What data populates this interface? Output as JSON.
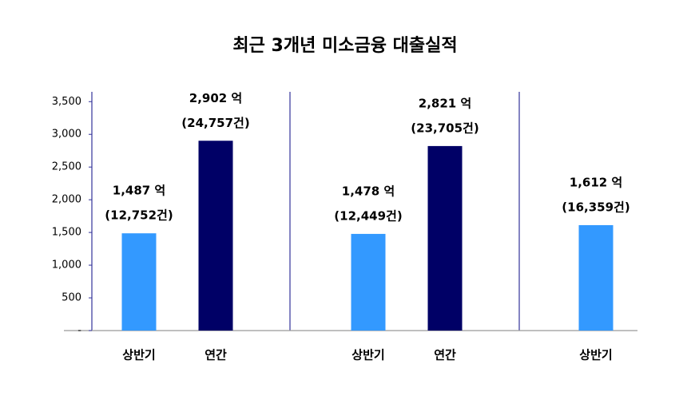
{
  "chart_data": {
    "type": "bar",
    "title": "최근 3개년 미소금융 대출실적",
    "categories": [
      "상반기",
      "연간",
      "상반기",
      "연간",
      "상반기"
    ],
    "values": [
      1487,
      2902,
      1478,
      2821,
      1612
    ],
    "value_labels": [
      "1,487 억",
      "2,902 억",
      "1,478 억",
      "2,821 억",
      "1,612 억"
    ],
    "count_labels": [
      "(12,752건)",
      "(24,757건)",
      "(12,449건)",
      "(23,705건)",
      "(16,359건)"
    ],
    "colors": [
      "#3399ff",
      "#000066",
      "#3399ff",
      "#000066",
      "#3399ff"
    ],
    "ylim": [
      0,
      3650
    ],
    "yticks": [
      {
        "value": 0,
        "label": "-"
      },
      500,
      {
        "value": 1000,
        "label": "1,000"
      },
      {
        "value": 1500,
        "label": "1,500"
      },
      {
        "value": 2000,
        "label": "2,000"
      },
      {
        "value": 2500,
        "label": "2,500"
      },
      {
        "value": 3000,
        "label": "3,000"
      },
      {
        "value": 3500,
        "label": "3,500"
      }
    ]
  }
}
